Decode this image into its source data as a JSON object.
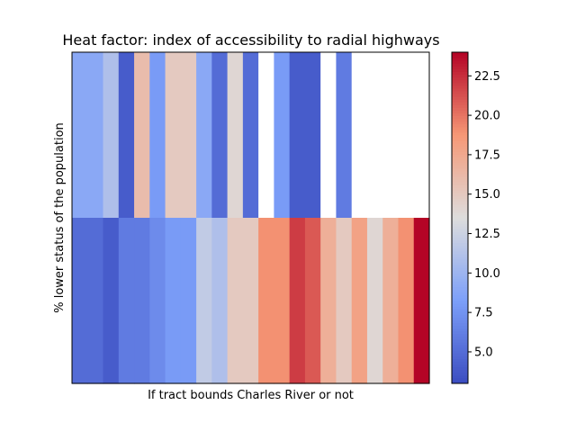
{
  "chart_data": {
    "type": "heatmap",
    "title": "Heat factor: index of accessibility to radial highways",
    "xlabel": "If tract bounds Charles River or not",
    "ylabel": "% lower status of the population",
    "colormap": "coolwarm",
    "colorbar": {
      "min": 3,
      "max": 24,
      "ticks": [
        5.0,
        7.5,
        10.0,
        12.5,
        15.0,
        17.5,
        20.0,
        22.5
      ],
      "tick_labels": [
        "5.0",
        "7.5",
        "10.0",
        "12.5",
        "15.0",
        "17.5",
        "20.0",
        "22.5"
      ]
    },
    "rows": [
      {
        "name": "top",
        "values": [
          9,
          9,
          11,
          4,
          16,
          8,
          15,
          15,
          9,
          5,
          14,
          5,
          null,
          8,
          4,
          4,
          null,
          6,
          null,
          null,
          null,
          null,
          null
        ]
      },
      {
        "name": "bottom",
        "values": [
          5,
          5,
          4,
          6,
          6,
          7,
          8,
          8,
          12,
          11,
          15,
          15,
          19,
          19,
          22,
          21,
          17,
          15,
          18,
          14,
          17,
          19,
          24
        ]
      }
    ],
    "missing_color": "#ffffff",
    "grid": false
  }
}
